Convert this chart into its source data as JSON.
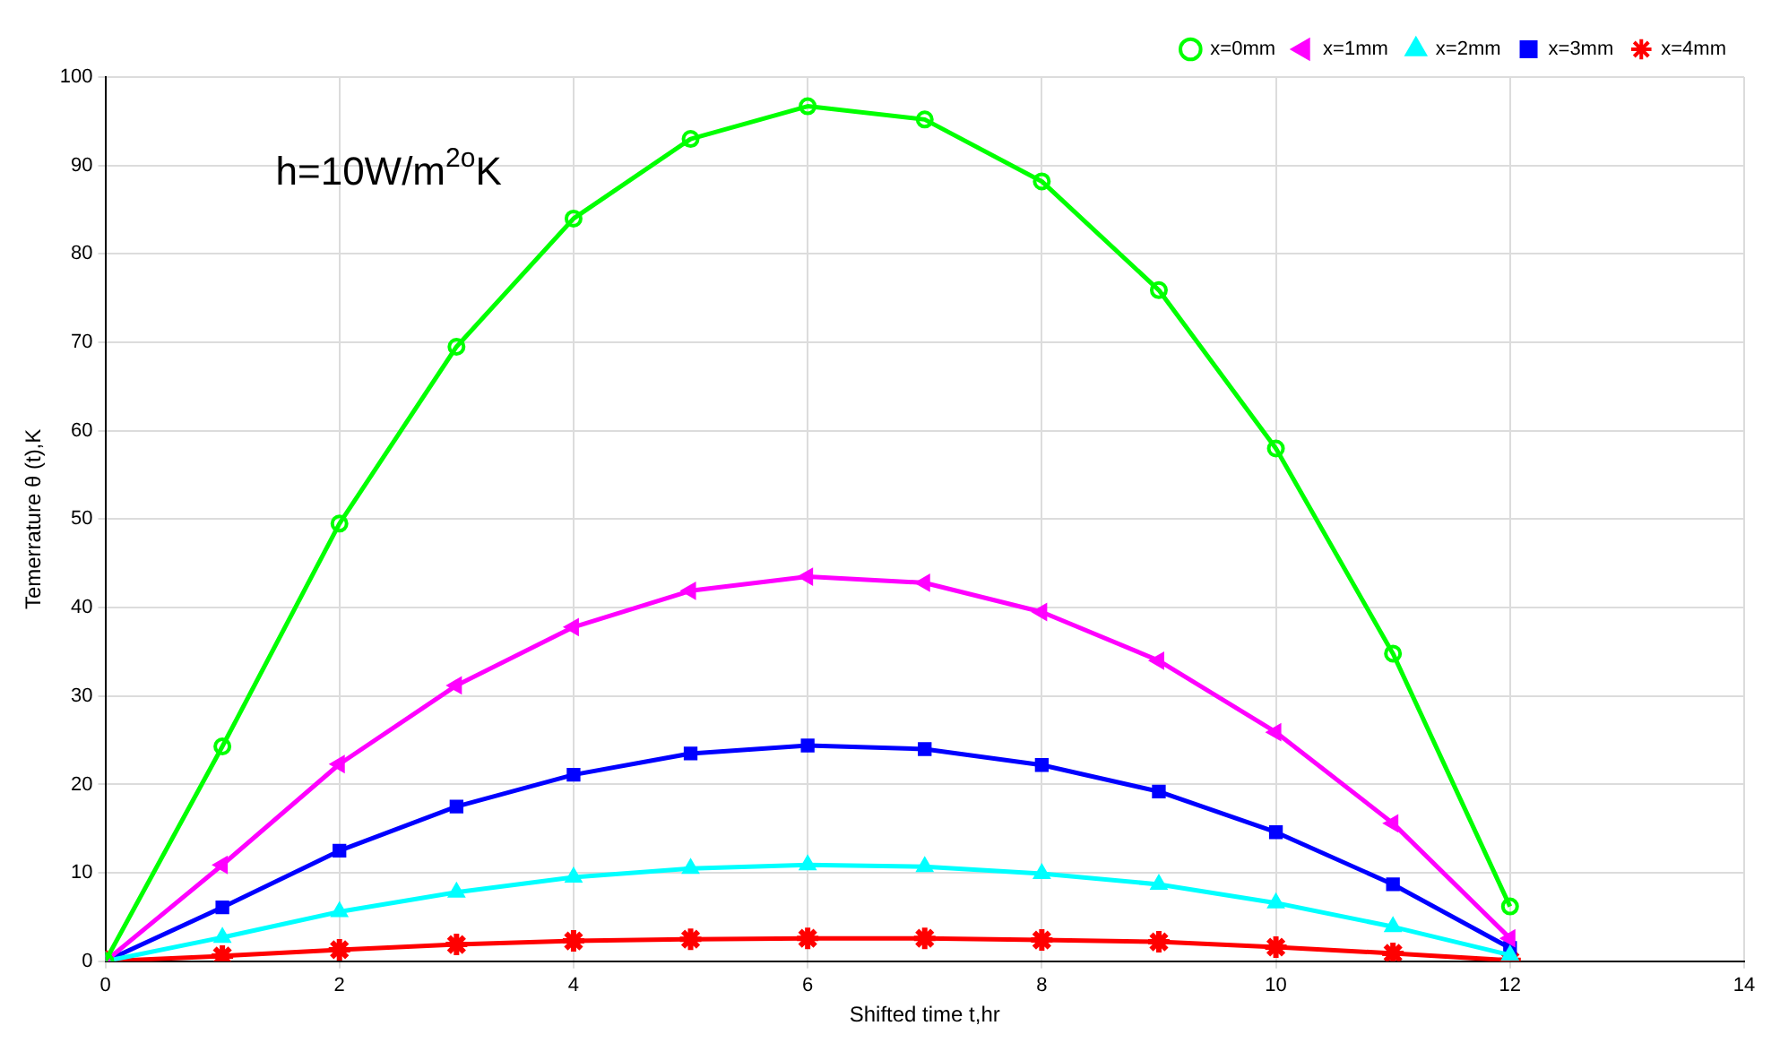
{
  "chart_data": {
    "type": "line",
    "xlabel": "Shifted time t,hr",
    "ylabel": "Temerrature θ (t),K",
    "annotations": [
      "h=10W/m$^{2o}$K"
    ],
    "x": [
      0,
      1,
      2,
      3,
      4,
      5,
      6,
      7,
      8,
      9,
      10,
      11,
      12
    ],
    "xlim": [
      0,
      14
    ],
    "xticks": [
      0,
      2,
      4,
      6,
      8,
      10,
      12,
      14
    ],
    "ylim": [
      0,
      100
    ],
    "yticks": [
      0,
      10,
      20,
      30,
      40,
      50,
      60,
      70,
      80,
      90,
      100
    ],
    "grid": true,
    "legend": "top right",
    "line_style": "solid",
    "series": [
      {
        "name": "x=0mm",
        "color": "#00ff00",
        "marker": "circle",
        "values": [
          0,
          24.3,
          49.5,
          69.5,
          84,
          93,
          96.7,
          95.2,
          88.2,
          75.9,
          58,
          34.8,
          6.2
        ]
      },
      {
        "name": "x=1mm",
        "color": "#ff00ff",
        "marker": "triangle-left",
        "values": [
          0,
          10.9,
          22.3,
          31.2,
          37.8,
          41.9,
          43.5,
          42.8,
          39.5,
          34,
          25.9,
          15.6,
          2.6
        ]
      },
      {
        "name": "x=2mm",
        "color": "#00ffff",
        "marker": "triangle",
        "values": [
          0,
          2.7,
          5.6,
          7.8,
          9.5,
          10.5,
          10.9,
          10.7,
          9.9,
          8.7,
          6.6,
          3.9,
          0.7
        ]
      },
      {
        "name": "x=3mm",
        "color": "#0000ff",
        "marker": "square",
        "values": [
          0,
          6.1,
          12.5,
          17.5,
          21.1,
          23.5,
          24.4,
          24,
          22.2,
          19.2,
          14.6,
          8.7,
          1.5
        ]
      },
      {
        "name": "x=4mm",
        "color": "#ff0000",
        "marker": "cross",
        "values": [
          0,
          0.6,
          1.3,
          1.9,
          2.3,
          2.5,
          2.6,
          2.6,
          2.4,
          2.2,
          1.6,
          0.9,
          0.1
        ]
      }
    ]
  }
}
